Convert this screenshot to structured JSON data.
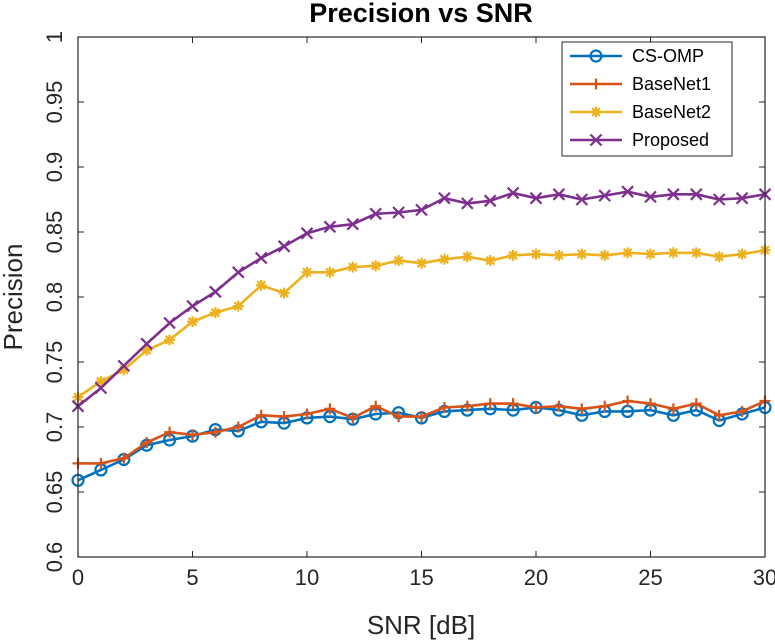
{
  "chart_data": {
    "type": "line",
    "title": "Precision vs SNR",
    "xlabel": "SNR [dB]",
    "ylabel": "Precision",
    "xlim": [
      0,
      30
    ],
    "ylim": [
      0.6,
      1
    ],
    "xticks": [
      "0",
      "5",
      "10",
      "15",
      "20",
      "25",
      "30"
    ],
    "yticks": [
      "0.6",
      "0.65",
      "0.7",
      "0.75",
      "0.8",
      "0.85",
      "0.9",
      "0.95",
      "1"
    ],
    "grid": false,
    "legend_position": "top-right",
    "x": [
      0,
      1,
      2,
      3,
      4,
      5,
      6,
      7,
      8,
      9,
      10,
      11,
      12,
      13,
      14,
      15,
      16,
      17,
      18,
      19,
      20,
      21,
      22,
      23,
      24,
      25,
      26,
      27,
      28,
      29,
      30
    ],
    "series": [
      {
        "name": "CS-OMP",
        "color": "#0072BD",
        "marker": "circle",
        "values": [
          0.659,
          0.667,
          0.675,
          0.686,
          0.69,
          0.693,
          0.698,
          0.697,
          0.704,
          0.703,
          0.707,
          0.708,
          0.706,
          0.71,
          0.711,
          0.707,
          0.712,
          0.713,
          0.714,
          0.713,
          0.715,
          0.713,
          0.709,
          0.712,
          0.712,
          0.713,
          0.709,
          0.713,
          0.705,
          0.71,
          0.715
        ]
      },
      {
        "name": "BaseNet1",
        "color": "#D95319",
        "marker": "plus",
        "values": [
          0.672,
          0.672,
          0.676,
          0.688,
          0.696,
          0.694,
          0.696,
          0.7,
          0.709,
          0.708,
          0.71,
          0.714,
          0.707,
          0.716,
          0.708,
          0.708,
          0.715,
          0.716,
          0.718,
          0.718,
          0.715,
          0.716,
          0.714,
          0.716,
          0.72,
          0.718,
          0.714,
          0.718,
          0.709,
          0.712,
          0.72
        ]
      },
      {
        "name": "BaseNet2",
        "color": "#EDB120",
        "marker": "asterisk",
        "values": [
          0.723,
          0.735,
          0.744,
          0.759,
          0.767,
          0.781,
          0.788,
          0.793,
          0.809,
          0.803,
          0.819,
          0.819,
          0.823,
          0.824,
          0.828,
          0.826,
          0.829,
          0.831,
          0.828,
          0.832,
          0.833,
          0.832,
          0.833,
          0.832,
          0.834,
          0.833,
          0.834,
          0.834,
          0.831,
          0.833,
          0.836
        ]
      },
      {
        "name": "Proposed",
        "color": "#7E2F8E",
        "marker": "x",
        "values": [
          0.716,
          0.73,
          0.747,
          0.764,
          0.78,
          0.793,
          0.804,
          0.819,
          0.83,
          0.839,
          0.849,
          0.854,
          0.856,
          0.864,
          0.865,
          0.867,
          0.876,
          0.872,
          0.874,
          0.88,
          0.876,
          0.879,
          0.875,
          0.878,
          0.881,
          0.877,
          0.879,
          0.879,
          0.875,
          0.876,
          0.879
        ]
      }
    ]
  }
}
